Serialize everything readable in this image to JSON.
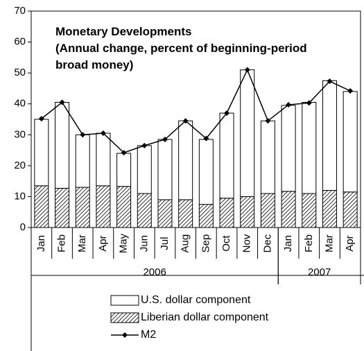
{
  "chart_data": {
    "type": "stacked_bar_line",
    "title": "Monetary Developments",
    "subtitle": "(Annual change, percent of beginning-period broad money)",
    "groups": [
      {
        "label": "2006",
        "categories": [
          "Jan",
          "Feb",
          "Mar",
          "Apr",
          "May",
          "Jun",
          "Jul",
          "Aug",
          "Sep",
          "Oct",
          "Nov",
          "Dec"
        ]
      },
      {
        "label": "2007",
        "categories": [
          "Jan",
          "Feb",
          "Mar",
          "Apr"
        ]
      }
    ],
    "series": [
      {
        "name": "U.S. dollar component",
        "kind": "bar",
        "color": "#ffffff",
        "values": [
          21.5,
          27.8,
          17,
          17,
          10.7,
          15.5,
          19.5,
          25.5,
          21,
          27.5,
          41,
          23.5,
          27.8,
          29.5,
          35.5,
          32.5
        ]
      },
      {
        "name": "Liberian dollar component",
        "kind": "bar",
        "color": "#000000",
        "pattern": "hatch",
        "values": [
          13.5,
          12.7,
          13,
          13.5,
          13.3,
          11,
          9,
          9,
          7.5,
          9.5,
          10,
          11,
          11.7,
          11,
          12,
          11.5
        ]
      },
      {
        "name": "M2",
        "kind": "line",
        "color": "#000000",
        "marker": "diamond",
        "values": [
          35.2,
          40.5,
          30,
          30.5,
          24.2,
          26.5,
          28.5,
          34.5,
          28.8,
          37,
          51,
          34.5,
          39.7,
          40.3,
          47.3,
          44.2
        ]
      }
    ],
    "ylim": [
      0,
      70
    ],
    "yticks": [
      0,
      10,
      20,
      30,
      40,
      50,
      60,
      70
    ],
    "legend": "bottom"
  }
}
